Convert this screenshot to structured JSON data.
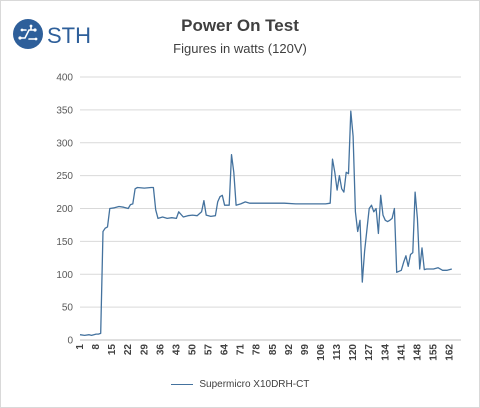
{
  "brand": {
    "logo_text": "STH",
    "colors": {
      "logo_circle": "#2e5f9a",
      "logo_text": "#2e5f9a"
    }
  },
  "chart_data": {
    "type": "line",
    "title": "Power On Test",
    "subtitle": "Figures in watts (120V)",
    "xlabel": "",
    "ylabel": "",
    "ylim": [
      0,
      400
    ],
    "yticks": [
      0,
      50,
      100,
      150,
      200,
      250,
      300,
      350,
      400
    ],
    "xlim": [
      1,
      167
    ],
    "xticks": [
      "1",
      "8",
      "15",
      "22",
      "29",
      "36",
      "43",
      "50",
      "57",
      "64",
      "71",
      "78",
      "85",
      "92",
      "99",
      "106",
      "113",
      "120",
      "127",
      "134",
      "141",
      "148",
      "155",
      "162"
    ],
    "grid": "horizontal",
    "legend_position": "bottom",
    "line_color": "#44729e",
    "series": [
      {
        "name": "Supermicro X10DRH-CT",
        "points": [
          [
            1,
            8
          ],
          [
            3,
            7
          ],
          [
            5,
            8
          ],
          [
            6,
            7
          ],
          [
            7,
            8
          ],
          [
            8,
            9
          ],
          [
            9,
            9
          ],
          [
            10,
            10
          ],
          [
            11,
            165
          ],
          [
            12,
            170
          ],
          [
            13,
            172
          ],
          [
            14,
            200
          ],
          [
            16,
            201
          ],
          [
            18,
            203
          ],
          [
            20,
            202
          ],
          [
            22,
            200
          ],
          [
            23,
            206
          ],
          [
            24,
            207
          ],
          [
            25,
            230
          ],
          [
            26,
            232
          ],
          [
            29,
            231
          ],
          [
            32,
            232
          ],
          [
            33,
            232
          ],
          [
            34,
            198
          ],
          [
            35,
            185
          ],
          [
            37,
            187
          ],
          [
            39,
            185
          ],
          [
            41,
            186
          ],
          [
            43,
            185
          ],
          [
            44,
            195
          ],
          [
            46,
            187
          ],
          [
            48,
            189
          ],
          [
            50,
            190
          ],
          [
            52,
            189
          ],
          [
            54,
            195
          ],
          [
            55,
            212
          ],
          [
            56,
            190
          ],
          [
            58,
            188
          ],
          [
            60,
            189
          ],
          [
            61,
            210
          ],
          [
            62,
            218
          ],
          [
            63,
            220
          ],
          [
            64,
            205
          ],
          [
            66,
            205
          ],
          [
            67,
            282
          ],
          [
            68,
            255
          ],
          [
            69,
            205
          ],
          [
            71,
            207
          ],
          [
            73,
            210
          ],
          [
            75,
            208
          ],
          [
            80,
            208
          ],
          [
            85,
            208
          ],
          [
            90,
            208
          ],
          [
            95,
            207
          ],
          [
            100,
            207
          ],
          [
            105,
            207
          ],
          [
            108,
            207
          ],
          [
            110,
            208
          ],
          [
            111,
            275
          ],
          [
            112,
            255
          ],
          [
            113,
            228
          ],
          [
            114,
            250
          ],
          [
            115,
            230
          ],
          [
            116,
            225
          ],
          [
            117,
            255
          ],
          [
            118,
            253
          ],
          [
            119,
            348
          ],
          [
            120,
            310
          ],
          [
            121,
            195
          ],
          [
            122,
            165
          ],
          [
            123,
            182
          ],
          [
            124,
            88
          ],
          [
            125,
            135
          ],
          [
            127,
            200
          ],
          [
            128,
            205
          ],
          [
            129,
            195
          ],
          [
            130,
            200
          ],
          [
            131,
            162
          ],
          [
            132,
            220
          ],
          [
            133,
            190
          ],
          [
            134,
            182
          ],
          [
            135,
            180
          ],
          [
            136,
            182
          ],
          [
            137,
            185
          ],
          [
            138,
            200
          ],
          [
            139,
            103
          ],
          [
            141,
            106
          ],
          [
            142,
            118
          ],
          [
            143,
            128
          ],
          [
            144,
            112
          ],
          [
            145,
            130
          ],
          [
            146,
            133
          ],
          [
            147,
            225
          ],
          [
            148,
            185
          ],
          [
            149,
            108
          ],
          [
            150,
            140
          ],
          [
            151,
            107
          ],
          [
            152,
            108
          ],
          [
            155,
            108
          ],
          [
            157,
            110
          ],
          [
            159,
            106
          ],
          [
            161,
            106
          ],
          [
            163,
            108
          ]
        ]
      }
    ]
  }
}
